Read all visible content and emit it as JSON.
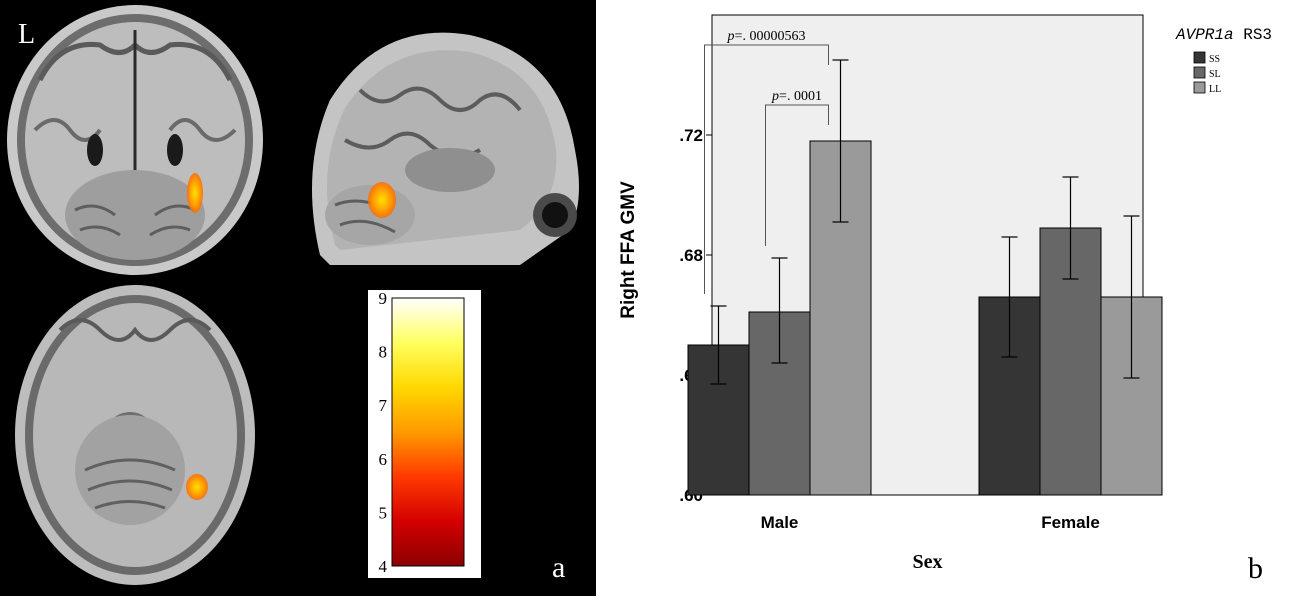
{
  "panel_a": {
    "panel_letter": "a",
    "orientation_label": "L",
    "colorbar": {
      "min": 4,
      "max": 9,
      "ticks": [
        "4",
        "5",
        "6",
        "7",
        "8",
        "9"
      ],
      "colors": [
        "#8b0000",
        "#d40000",
        "#ff3a00",
        "#ff9a00",
        "#ffd800",
        "#ffff60",
        "#ffffff"
      ]
    }
  },
  "panel_b": {
    "panel_letter": "b"
  },
  "chart_data": {
    "type": "bar",
    "categories": [
      "Male",
      "Female"
    ],
    "xlabel": "Sex",
    "ylabel": "Right FFA GMV",
    "ylim": [
      0.6,
      0.76
    ],
    "yticks": [
      0.6,
      0.64,
      0.68,
      0.72
    ],
    "ytick_labels": [
      ".60",
      ".64",
      ".68",
      ".72"
    ],
    "legend_title_italic": "AVPR1a",
    "legend_title_rest": " RS3",
    "legend_position": "top-right",
    "background": "#efefef",
    "series": [
      {
        "name": "SS",
        "color": "#353535",
        "values": [
          0.65,
          0.666
        ],
        "err_low": [
          0.637,
          0.646
        ],
        "err_high": [
          0.663,
          0.686
        ]
      },
      {
        "name": "SL",
        "color": "#676767",
        "values": [
          0.661,
          0.689
        ],
        "err_low": [
          0.644,
          0.672
        ],
        "err_high": [
          0.679,
          0.706
        ]
      },
      {
        "name": "LL",
        "color": "#9a9a9a",
        "values": [
          0.718,
          0.666
        ],
        "err_low": [
          0.691,
          0.639
        ],
        "err_high": [
          0.745,
          0.693
        ]
      }
    ],
    "annotations": [
      {
        "italic": "p",
        "text": "=. 00000563",
        "category": "Male",
        "from_series": 0,
        "to_series": 2
      },
      {
        "italic": "p",
        "text": "=. 0001",
        "category": "Male",
        "from_series": 1,
        "to_series": 2
      }
    ]
  }
}
